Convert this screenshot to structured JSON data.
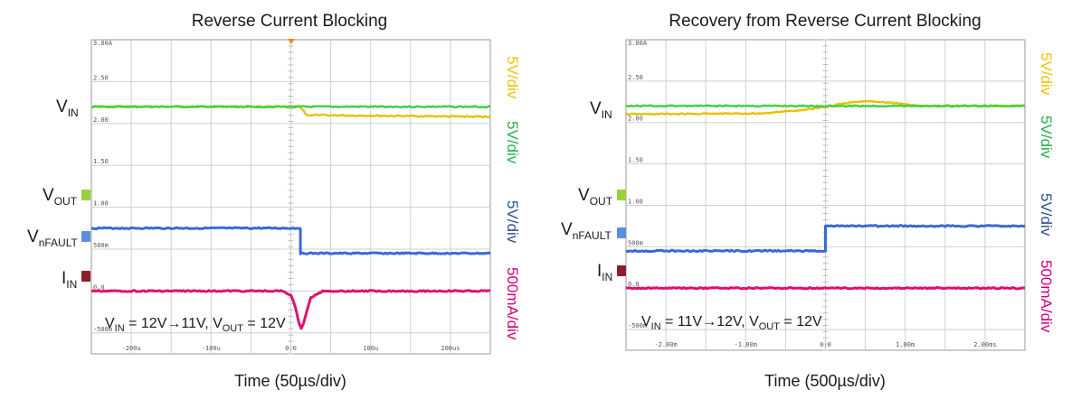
{
  "chart_data": [
    {
      "type": "line",
      "title": "Reverse Current Blocking",
      "xlabel": "Time (50µs/div)",
      "x_ticks": [
        "-200u",
        "-100u",
        "0.0",
        "100u",
        "200us"
      ],
      "y_ticks": [
        "3.00A",
        "2.50",
        "2.00",
        "1.50",
        "1.00",
        "500m",
        "0.0",
        "-500m"
      ],
      "xlim": [
        -250,
        250
      ],
      "ylim": [
        -0.75,
        3.0
      ],
      "x_unit": "µs",
      "signal_labels": {
        "vin": {
          "main": "V",
          "sub": "IN"
        },
        "vout": {
          "main": "V",
          "sub": "OUT"
        },
        "vnfault": {
          "main": "V",
          "sub": "nFAULT"
        },
        "iin": {
          "main": "I",
          "sub": "IN"
        }
      },
      "channel_scales": [
        {
          "label": "5V/div",
          "color": "#f2c20c"
        },
        {
          "label": "5V/div",
          "color": "#22b14c"
        },
        {
          "label": "5V/div",
          "color": "#2e4f8f"
        },
        {
          "label": "500mA/div",
          "color": "#d4007a"
        }
      ],
      "condition": {
        "p1": "V",
        "s1": "IN",
        "p2": " = 12V→11V, V",
        "s2": "OUT",
        "p3": " = 12V"
      },
      "series": [
        {
          "name": "VOUT (yellow)",
          "color": "#e8c000",
          "x": [
            -250,
            12,
            20,
            250
          ],
          "y": [
            2.2,
            2.2,
            2.1,
            2.08
          ]
        },
        {
          "name": "VIN (green)",
          "color": "#3cd23c",
          "x": [
            -250,
            250
          ],
          "y": [
            2.2,
            2.2
          ]
        },
        {
          "name": "VnFAULT (blue)",
          "color": "#3a6ad6",
          "x": [
            -250,
            12,
            12,
            250
          ],
          "y": [
            0.75,
            0.75,
            0.45,
            0.45
          ]
        },
        {
          "name": "IIN (magenta)",
          "color": "#e0106e",
          "x": [
            -250,
            -10,
            0,
            6,
            10,
            13,
            16,
            25,
            40,
            250
          ],
          "y": [
            0.0,
            0.0,
            -0.05,
            -0.2,
            -0.37,
            -0.45,
            -0.38,
            -0.08,
            0.0,
            0.0
          ]
        }
      ]
    },
    {
      "type": "line",
      "title": "Recovery from Reverse Current Blocking",
      "xlabel": "Time (500µs/div)",
      "x_ticks": [
        "-2.00m",
        "-1.00m",
        "0.0",
        "1.00m",
        "2.00ms"
      ],
      "y_ticks": [
        "3.00A",
        "2.50",
        "2.00",
        "1.50",
        "1.00",
        "500m",
        "0.0",
        "-500m"
      ],
      "xlim": [
        -2.5,
        2.5
      ],
      "ylim": [
        -0.75,
        3.0
      ],
      "x_unit": "ms",
      "signal_labels": {
        "vin": {
          "main": "V",
          "sub": "IN"
        },
        "vout": {
          "main": "V",
          "sub": "OUT"
        },
        "vnfault": {
          "main": "V",
          "sub": "nFAULT"
        },
        "iin": {
          "main": "I",
          "sub": "IN"
        }
      },
      "channel_scales": [
        {
          "label": "5V/div",
          "color": "#f2c20c"
        },
        {
          "label": "5V/div",
          "color": "#22b14c"
        },
        {
          "label": "5V/div",
          "color": "#2e4f8f"
        },
        {
          "label": "500mA/div",
          "color": "#d4007a"
        }
      ],
      "condition": {
        "p1": "V",
        "s1": "IN",
        "p2": " = 11V→12V, V",
        "s2": "OUT",
        "p3": " = 12V"
      },
      "series": [
        {
          "name": "VOUT (yellow)",
          "color": "#e8c000",
          "x": [
            -2.5,
            -0.8,
            -0.3,
            0.0,
            0.3,
            0.55,
            0.8,
            1.2,
            1.8,
            2.5
          ],
          "y": [
            2.1,
            2.11,
            2.15,
            2.19,
            2.24,
            2.26,
            2.24,
            2.2,
            2.2,
            2.2
          ]
        },
        {
          "name": "VIN (green)",
          "color": "#3cd23c",
          "x": [
            -2.5,
            2.5
          ],
          "y": [
            2.2,
            2.2
          ]
        },
        {
          "name": "VnFAULT (blue)",
          "color": "#3a6ad6",
          "x": [
            -2.5,
            0.0,
            0.0,
            2.5
          ],
          "y": [
            0.45,
            0.45,
            0.75,
            0.75
          ]
        },
        {
          "name": "IIN (magenta)",
          "color": "#e0106e",
          "x": [
            -2.5,
            2.5
          ],
          "y": [
            0.0,
            0.0
          ]
        }
      ]
    }
  ]
}
